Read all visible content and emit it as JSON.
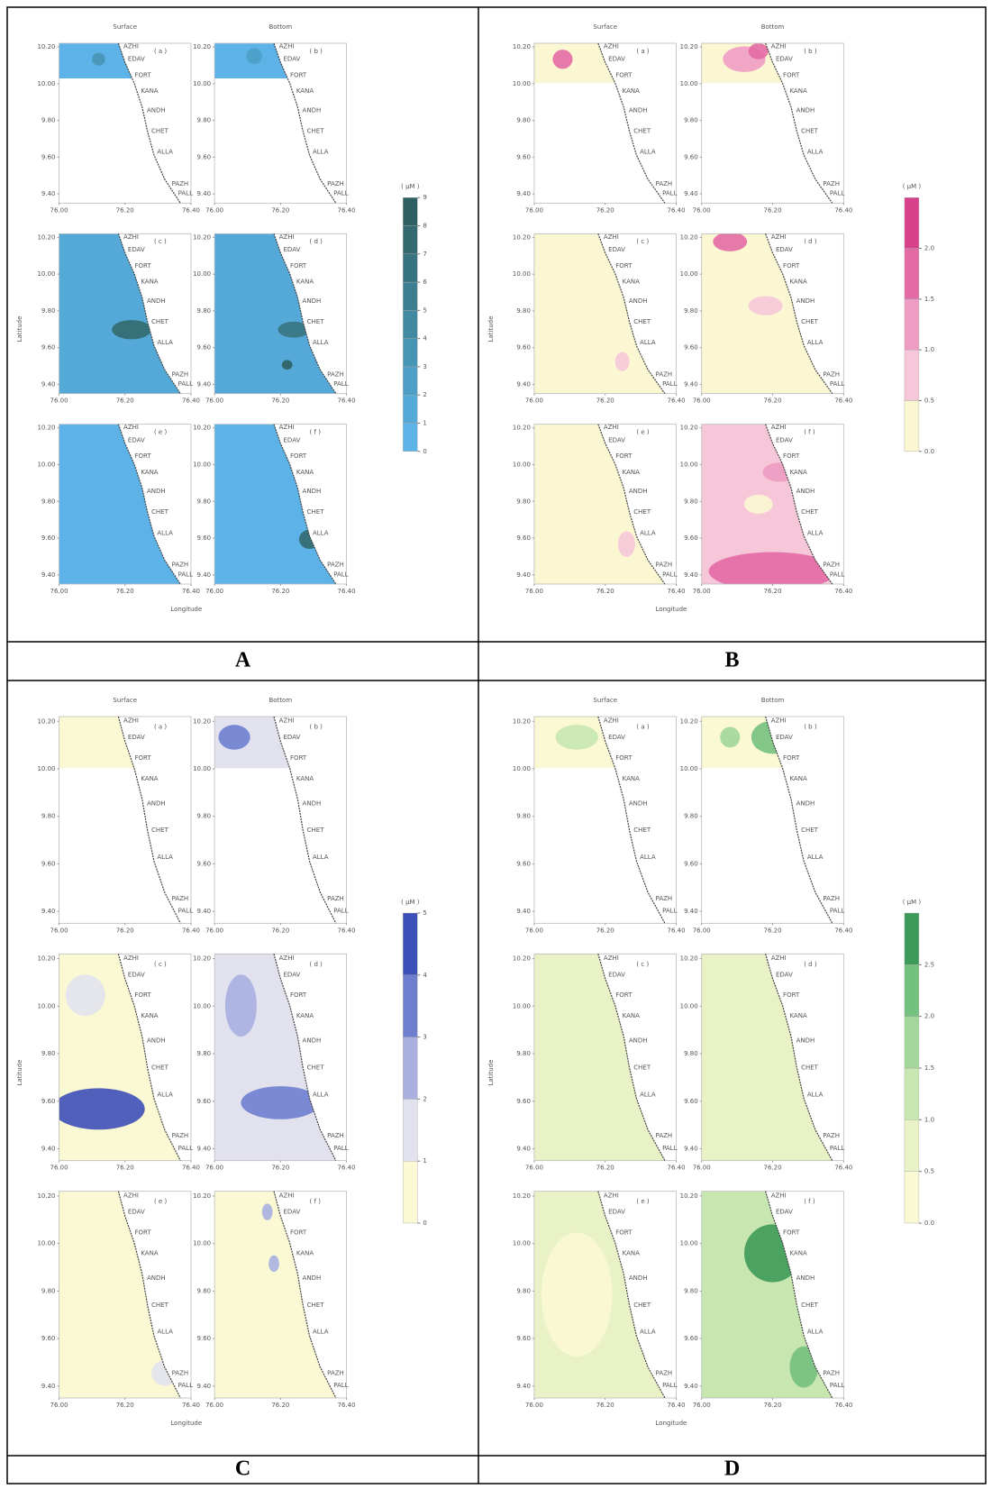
{
  "figure": {
    "panels": [
      {
        "label": "A",
        "headers": [
          "Surface",
          "Bottom"
        ],
        "map_labels": [
          "( a )",
          "( b )",
          "( c )",
          "( d )",
          "( e )",
          "( f )"
        ],
        "legend_title": "( µM )",
        "legend_ticks": [
          0,
          1,
          2,
          3,
          4,
          5,
          6,
          7,
          8,
          9
        ],
        "colors": [
          "#5db3e8",
          "#55a9d8",
          "#4d9fc8",
          "#4795b5",
          "#428aa2",
          "#3d7f90",
          "#38747f",
          "#336a70",
          "#2e5f62"
        ]
      },
      {
        "label": "B",
        "headers": [
          "Surface",
          "Bottom"
        ],
        "map_labels": [
          "( a )",
          "( b )",
          "( c )",
          "( d )",
          "( e )",
          "( f )"
        ],
        "legend_title": "( µM )",
        "legend_ticks": [
          {
            "value": 0,
            "label": "0.0"
          },
          0.5,
          {
            "value": 1,
            "label": "1.0"
          },
          1.5,
          {
            "value": 2,
            "label": "2.0"
          }
        ],
        "colors": [
          "#fbf7d2",
          "#f6c6d9",
          "#ee9cc2",
          "#e46aa5",
          "#d9408c"
        ]
      },
      {
        "label": "C",
        "headers": [
          "Surface",
          "Bottom"
        ],
        "map_labels": [
          "( a )",
          "( b )",
          "( c )",
          "( d )",
          "( e )",
          "( f )"
        ],
        "legend_title": "( µM )",
        "legend_ticks": [
          0,
          1,
          2,
          3,
          4,
          5
        ],
        "colors": [
          "#fbf8d4",
          "#e2e2ee",
          "#a9b0e0",
          "#6f7fd0",
          "#3d4fb8"
        ]
      },
      {
        "label": "D",
        "headers": [
          "Surface",
          "Bottom"
        ],
        "map_labels": [
          "( a )",
          "( b )",
          "( c )",
          "( d )",
          "( e )",
          "( f )"
        ],
        "legend_title": "( µM )",
        "legend_ticks": [
          {
            "value": 0,
            "label": "0.0"
          },
          0.5,
          {
            "value": 1,
            "label": "1.0"
          },
          1.5,
          {
            "value": 2,
            "label": "2.0"
          },
          2.5
        ],
        "colors": [
          "#fbf8d4",
          "#e8f2c6",
          "#c7e6b0",
          "#a2d69a",
          "#74c07f",
          "#3e9a59"
        ]
      }
    ],
    "stations": [
      "AZHI",
      "EDAV",
      "FORT",
      "KANA",
      "ANDH",
      "CHET",
      "ALLA",
      "PAZH",
      "PALL"
    ],
    "xlim": [
      76.0,
      76.4
    ],
    "ylim": [
      9.35,
      10.22
    ],
    "xticks": [
      {
        "value": 76,
        "label": "76.00"
      },
      {
        "value": 76.2,
        "label": "76.20"
      },
      {
        "value": 76.4,
        "label": "76.40"
      }
    ],
    "yticks": [
      {
        "value": 10.2,
        "label": "10.20"
      },
      {
        "value": 10,
        "label": "10.00"
      },
      {
        "value": 9.8,
        "label": "9.80"
      },
      {
        "value": 9.6,
        "label": "9.60"
      },
      {
        "value": 9.4,
        "label": "9.40"
      }
    ],
    "xlabel": "Longitude",
    "ylabel": "Latitude"
  }
}
